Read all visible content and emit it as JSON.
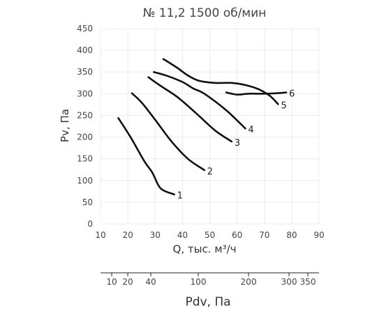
{
  "chart_data": {
    "type": "line",
    "title": "№ 11,2 1500 об/мин",
    "xlabel": "Q, тыс. м³/ч",
    "ylabel": "Pv, Па",
    "xlim": [
      10,
      90
    ],
    "ylim": [
      0,
      450
    ],
    "xticks": [
      10,
      20,
      30,
      40,
      50,
      60,
      70,
      80,
      90
    ],
    "yticks": [
      0,
      50,
      100,
      150,
      200,
      250,
      300,
      350,
      400,
      450
    ],
    "grid": true,
    "series": [
      {
        "name": "1",
        "points": [
          [
            16.5,
            244
          ],
          [
            21,
            200
          ],
          [
            26,
            145
          ],
          [
            29,
            118
          ],
          [
            32,
            82
          ],
          [
            37,
            68
          ]
        ]
      },
      {
        "name": "2",
        "points": [
          [
            21.5,
            301
          ],
          [
            25,
            280
          ],
          [
            30,
            240
          ],
          [
            36,
            190
          ],
          [
            42,
            150
          ],
          [
            48,
            124
          ]
        ]
      },
      {
        "name": "3",
        "points": [
          [
            27.5,
            338
          ],
          [
            32,
            318
          ],
          [
            38,
            293
          ],
          [
            45,
            255
          ],
          [
            52,
            215
          ],
          [
            58,
            190
          ]
        ]
      },
      {
        "name": "4",
        "points": [
          [
            29.5,
            350
          ],
          [
            34,
            342
          ],
          [
            40,
            327
          ],
          [
            44,
            312
          ],
          [
            48,
            300
          ],
          [
            56,
            262
          ],
          [
            63,
            220
          ]
        ]
      },
      {
        "name": "5",
        "points": [
          [
            33,
            380
          ],
          [
            38,
            360
          ],
          [
            42,
            342
          ],
          [
            46,
            330
          ],
          [
            52,
            325
          ],
          [
            58,
            325
          ],
          [
            63,
            320
          ],
          [
            68,
            310
          ],
          [
            72,
            295
          ],
          [
            75,
            276
          ]
        ]
      },
      {
        "name": "6",
        "points": [
          [
            56,
            303
          ],
          [
            60,
            298
          ],
          [
            64,
            300
          ],
          [
            70,
            300
          ],
          [
            74,
            301
          ],
          [
            78,
            303
          ]
        ]
      }
    ],
    "secondary_axis": {
      "label": "Pdv, Па",
      "ticks": [
        "10",
        "20",
        "40",
        "100",
        "200",
        "300",
        "350"
      ]
    }
  }
}
